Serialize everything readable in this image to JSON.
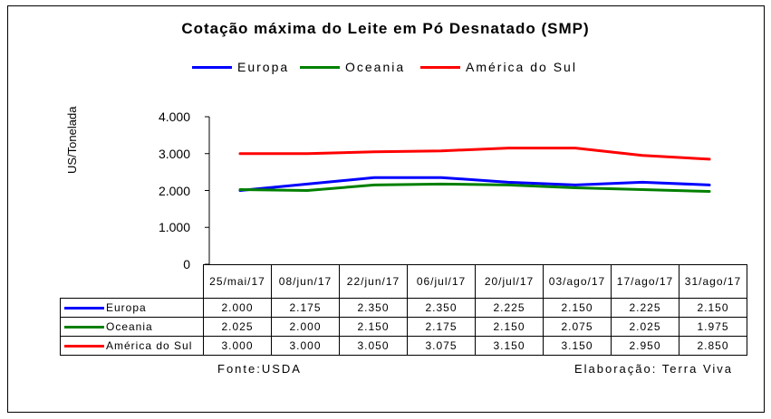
{
  "chart_data": {
    "type": "line",
    "title": "Cotação máxima do Leite em Pó Desnatado (SMP)",
    "ylabel": "US/Tonelada",
    "ylim": [
      0,
      4000
    ],
    "yticks": [
      "4.000",
      "3.000",
      "2.000",
      "1.000",
      "0"
    ],
    "yticks_values": [
      4000,
      3000,
      2000,
      1000,
      0
    ],
    "categories": [
      "25/mai/17",
      "08/jun/17",
      "22/jun/17",
      "06/jul/17",
      "20/jul/17",
      "03/ago/17",
      "17/ago/17",
      "31/ago/17"
    ],
    "series": [
      {
        "name": "Europa",
        "color": "#0000ff",
        "values": [
          2000,
          2175,
          2350,
          2350,
          2225,
          2150,
          2225,
          2150
        ],
        "labels": [
          "2.000",
          "2.175",
          "2.350",
          "2.350",
          "2.225",
          "2.150",
          "2.225",
          "2.150"
        ]
      },
      {
        "name": "Oceania",
        "color": "#008000",
        "values": [
          2025,
          2000,
          2150,
          2175,
          2150,
          2075,
          2025,
          1975
        ],
        "labels": [
          "2.025",
          "2.000",
          "2.150",
          "2.175",
          "2.150",
          "2.075",
          "2.025",
          "1.975"
        ]
      },
      {
        "name": "América do Sul",
        "color": "#ff0000",
        "values": [
          3000,
          3000,
          3050,
          3075,
          3150,
          3150,
          2950,
          2850
        ],
        "labels": [
          "3.000",
          "3.000",
          "3.050",
          "3.075",
          "3.150",
          "3.150",
          "2.950",
          "2.850"
        ]
      }
    ],
    "grid": false,
    "legend_position": "top"
  },
  "footer": {
    "source": "Fonte:USDA",
    "credit": "Elaboração: Terra Viva"
  }
}
